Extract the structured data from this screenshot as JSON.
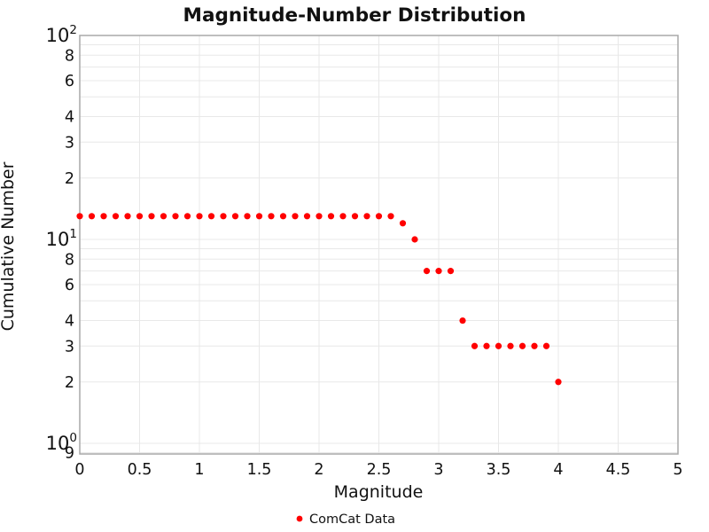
{
  "chart_data": {
    "type": "scatter",
    "title": "Magnitude-Number Distribution",
    "xlabel": "Magnitude",
    "ylabel": "Cumulative Number",
    "x": [
      0.0,
      0.1,
      0.2,
      0.3,
      0.4,
      0.5,
      0.6,
      0.7,
      0.8,
      0.9,
      1.0,
      1.1,
      1.2,
      1.3,
      1.4,
      1.5,
      1.6,
      1.7,
      1.8,
      1.9,
      2.0,
      2.1,
      2.2,
      2.3,
      2.4,
      2.5,
      2.6,
      2.7,
      2.8,
      2.9,
      3.0,
      3.1,
      3.2,
      3.3,
      3.4,
      3.5,
      3.6,
      3.7,
      3.8,
      3.9,
      4.0
    ],
    "series": [
      {
        "name": "ComCat Data",
        "color": "#ff0000",
        "values": [
          13,
          13,
          13,
          13,
          13,
          13,
          13,
          13,
          13,
          13,
          13,
          13,
          13,
          13,
          13,
          13,
          13,
          13,
          13,
          13,
          13,
          13,
          13,
          13,
          13,
          13,
          13,
          12,
          10,
          7,
          7,
          7,
          4,
          3,
          3,
          3,
          3,
          3,
          3,
          3,
          2
        ]
      }
    ],
    "xlim": [
      0,
      5
    ],
    "ylim": [
      0.887,
      100
    ],
    "yscale": "log",
    "grid": true,
    "legend_position": "bottom",
    "x_ticks": [
      {
        "value": 0,
        "label": "0"
      },
      {
        "value": 0.5,
        "label": "0.5"
      },
      {
        "value": 1,
        "label": "1"
      },
      {
        "value": 1.5,
        "label": "1.5"
      },
      {
        "value": 2,
        "label": "2"
      },
      {
        "value": 2.5,
        "label": "2.5"
      },
      {
        "value": 3,
        "label": "3"
      },
      {
        "value": 3.5,
        "label": "3.5"
      },
      {
        "value": 4,
        "label": "4"
      },
      {
        "value": 4.5,
        "label": "4.5"
      },
      {
        "value": 5,
        "label": "5"
      }
    ],
    "y_ticks_major": [
      {
        "value": 100,
        "base": "10",
        "exp": "2"
      },
      {
        "value": 10,
        "base": "10",
        "exp": "1"
      },
      {
        "value": 1,
        "base": "10",
        "exp": "0"
      }
    ],
    "y_ticks_minor": [
      {
        "value": 80,
        "label": "8"
      },
      {
        "value": 60,
        "label": "6"
      },
      {
        "value": 40,
        "label": "4"
      },
      {
        "value": 30,
        "label": "3"
      },
      {
        "value": 20,
        "label": "2"
      },
      {
        "value": 8,
        "label": "8"
      },
      {
        "value": 6,
        "label": "6"
      },
      {
        "value": 4,
        "label": "4"
      },
      {
        "value": 3,
        "label": "3"
      },
      {
        "value": 2,
        "label": "2"
      },
      {
        "value": 0.9,
        "label": "9"
      }
    ],
    "x_gridlines": [
      0,
      0.5,
      1,
      1.5,
      2,
      2.5,
      3,
      3.5,
      4,
      4.5,
      5
    ],
    "y_gridlines": [
      0.9,
      1,
      2,
      3,
      4,
      5,
      6,
      7,
      8,
      9,
      10,
      20,
      30,
      40,
      50,
      60,
      70,
      80,
      90,
      100
    ],
    "colors": {
      "marker": "#ff0000",
      "grid": "#e8e8e8",
      "axis_border": "#a9a9a9",
      "text": "#111111",
      "background": "#ffffff"
    }
  }
}
